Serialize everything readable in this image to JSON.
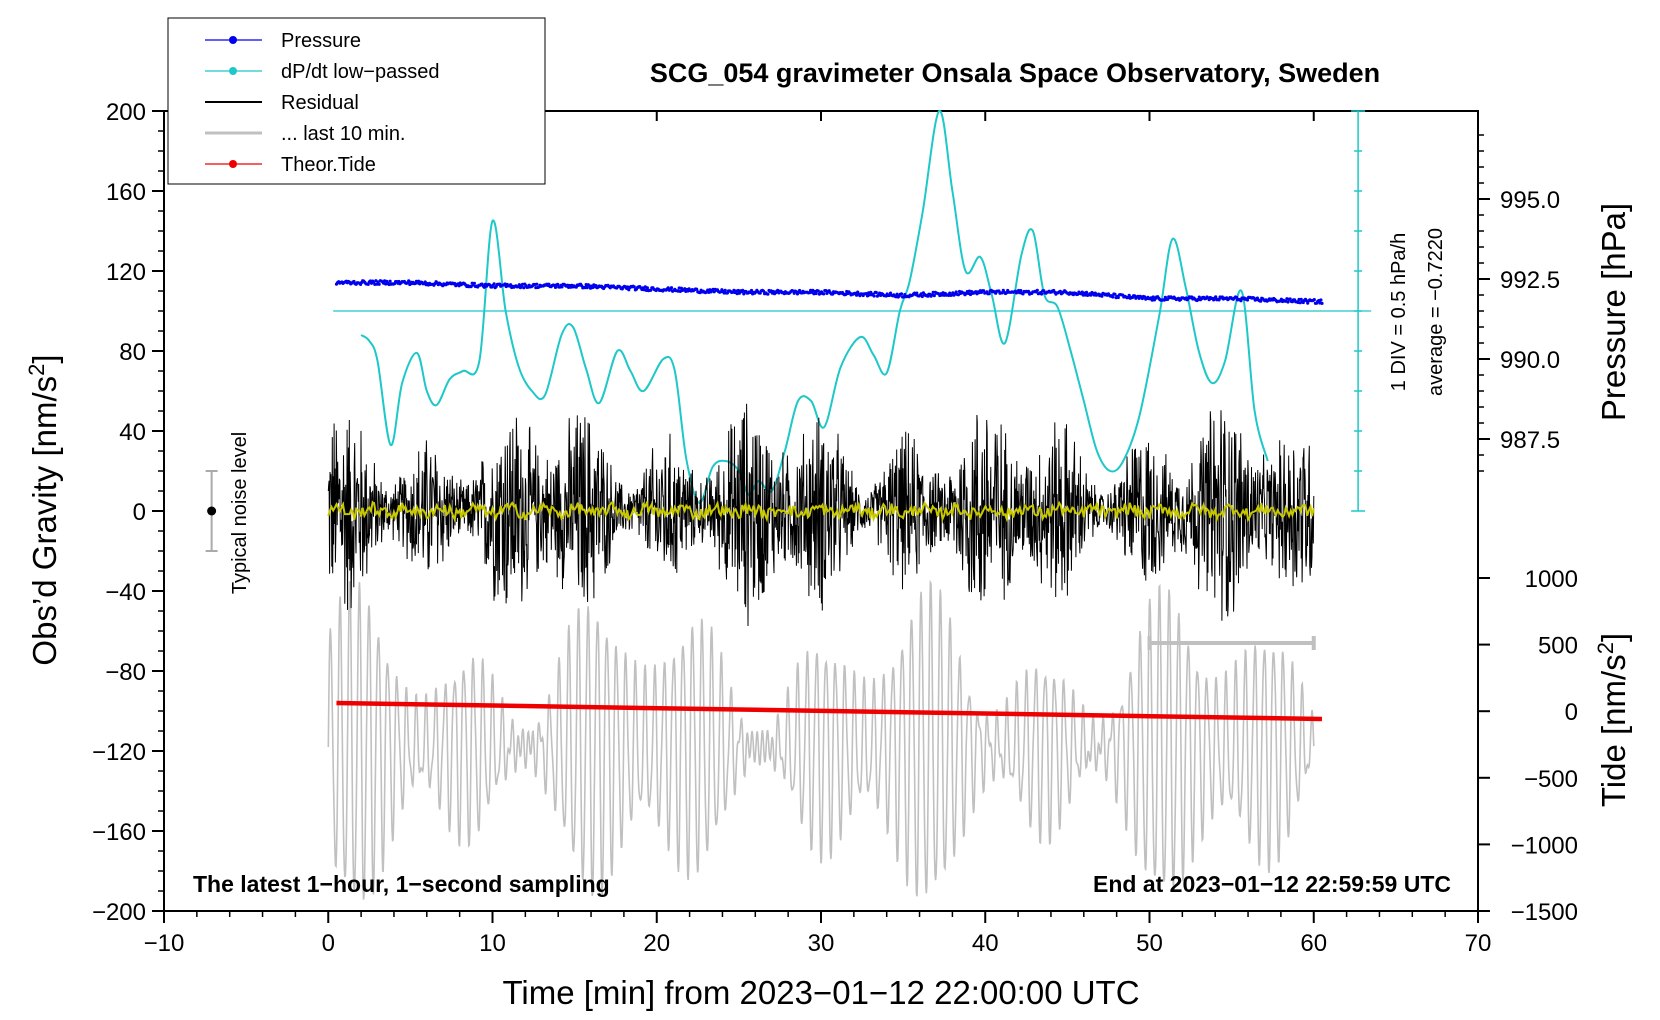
{
  "chart_data": {
    "type": "line",
    "title": "SCG_054 gravimeter Onsala Space Observatory, Sweden",
    "xlabel": "Time [min] from 2023−01−12 22:00:00 UTC",
    "ylabel": "Obs’d Gravity [nm/s²]",
    "ylabel_parts": {
      "pre": "Obs’d Gravity [nm/s",
      "sup": "2",
      "post": "]"
    },
    "xlim": [
      -10,
      70
    ],
    "ylim": [
      -200,
      200
    ],
    "x_ticks": [
      -10,
      0,
      10,
      20,
      30,
      40,
      50,
      60,
      70
    ],
    "x_tick_labels": [
      "−10",
      "0",
      "10",
      "20",
      "30",
      "40",
      "50",
      "60",
      "70"
    ],
    "y_ticks": [
      200,
      160,
      120,
      80,
      40,
      0,
      -40,
      -80,
      -120,
      -160,
      -200
    ],
    "y_tick_labels": [
      "200",
      "160",
      "120",
      "80",
      "40",
      "0",
      "−40",
      "−80",
      "−120",
      "−160",
      "−200"
    ],
    "pressure_axis": {
      "label_parts": {
        "pre": "Pressure [hPa]"
      },
      "label": "Pressure [hPa]",
      "ticks": [
        995.0,
        992.5,
        990.0,
        987.5
      ],
      "tick_labels": [
        "995.0",
        "992.5",
        "990.0",
        "987.5"
      ],
      "ref_value": 991.5,
      "ref_gravity": 100
    },
    "tide_axis": {
      "label": "Tide [nm/s²]",
      "label_parts": {
        "pre": "Tide [nm/s",
        "sup": "2",
        "post": "]"
      },
      "ticks": [
        1000,
        500,
        0,
        -500,
        -1000,
        -1500
      ],
      "tick_labels": [
        "1000",
        "500",
        "0",
        "−500",
        "−1000",
        "−1500"
      ],
      "range": [
        -1500,
        1000
      ]
    },
    "dpdt_scale": {
      "label1": "1 DIV = 0.5 hPa/h",
      "label2": "average = −0.7220",
      "average": -0.722,
      "div_value": 0.5
    },
    "noise_label": "Typical noise level",
    "noise_level": 20,
    "bottom_left_text": "The latest 1−hour, 1−second sampling",
    "bottom_right_text": "End at 2023−01−12 22:59:59 UTC",
    "last10_bar_x": [
      50,
      60
    ],
    "legend": [
      {
        "name": "Pressure",
        "color": "#0000ee",
        "style": "line+dot"
      },
      {
        "name": "dP/dt low−passed",
        "color": "#1ec8c8",
        "style": "line+dot"
      },
      {
        "name": "Residual",
        "color": "#000000",
        "style": "line"
      },
      {
        "name": "... last 10 min.",
        "color": "#c0c0c0",
        "style": "line"
      },
      {
        "name": "Theor.Tide",
        "color": "#ee0000",
        "style": "line+dot"
      }
    ],
    "series": [
      {
        "name": "Pressure",
        "unit": "hPa",
        "x": [
          0.5,
          5,
          10,
          15,
          20,
          25,
          30,
          35,
          40,
          45,
          50,
          55,
          60.5
        ],
        "values": [
          992.4,
          992.4,
          992.3,
          992.3,
          992.2,
          992.1,
          992.1,
          992.0,
          992.1,
          992.1,
          991.9,
          991.9,
          991.8
        ]
      },
      {
        "name": "dP/dt low−passed",
        "unit": "gravity-axis equivalent",
        "x": [
          2,
          2.5,
          3,
          3.8,
          4.5,
          5.4,
          6,
          6.6,
          7.4,
          8.2,
          9.2,
          10,
          10.8,
          11.6,
          12.4,
          13.2,
          14.2,
          14.9,
          15.7,
          16.5,
          17.6,
          18.4,
          19.2,
          20.4,
          21.1,
          21.8,
          22.6,
          23.4,
          24.2,
          25,
          25.6,
          26.2,
          27,
          27.8,
          28.6,
          29.4,
          30.2,
          31.2,
          32.4,
          33.2,
          34,
          34.8,
          35.4,
          36.2,
          37.2,
          38,
          38.8,
          39.7,
          40.4,
          41.2,
          42.2,
          42.9,
          43.6,
          44.4,
          45.2,
          46,
          46.8,
          47.6,
          48.4,
          49.4,
          50.6,
          51.4,
          52.2,
          53,
          53.8,
          54.6,
          55.6,
          56.4,
          57.2
        ],
        "values": [
          88,
          85,
          75,
          33,
          64,
          79,
          60,
          53,
          66,
          70,
          75,
          145,
          100,
          72,
          60,
          58,
          88,
          92,
          71,
          54,
          80,
          70,
          60,
          76,
          70,
          26,
          4,
          22,
          25,
          20,
          8,
          15,
          10,
          30,
          55,
          55,
          42,
          72,
          87,
          78,
          69,
          100,
          115,
          150,
          200,
          160,
          120,
          127,
          108,
          84,
          128,
          140,
          108,
          102,
          80,
          55,
          30,
          20,
          25,
          48,
          98,
          136,
          112,
          80,
          64,
          75,
          110,
          50,
          25
        ]
      },
      {
        "name": "Residual",
        "unit": "nm/s²",
        "x_range": [
          0,
          60
        ],
        "envelope_min": -80,
        "envelope_max": 72
      },
      {
        "name": "... last 10 min.",
        "unit": "nm/s² (offset)",
        "x_range": [
          0,
          60
        ],
        "amplitude_approx": 70
      },
      {
        "name": "Theor.Tide",
        "unit": "nm/s²",
        "x": [
          0.5,
          60.5
        ],
        "values": [
          -5,
          -65
        ]
      }
    ]
  }
}
